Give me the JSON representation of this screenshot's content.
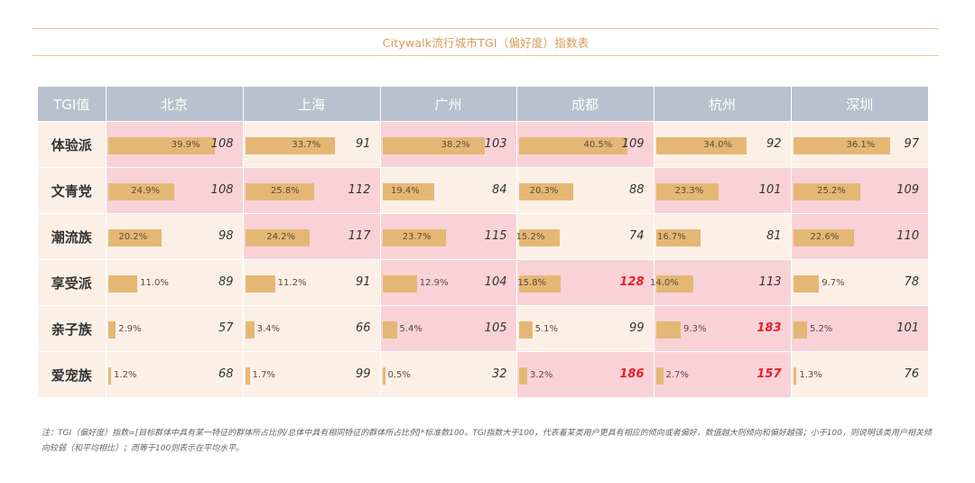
{
  "title": "Citywalk流行城市TGI（偏好度）指数表",
  "note": "注：TGI（偏好度）指数=[目标群体中具有某一特征的群体所占比例/总体中具有相同特征的群体所占比例]*标准数100。TGI指数大于100，代表着某类用户更具有相应的倾向或者偏好，数值越大则倾向和偏好越强；小于100，则说明该类用户相关倾向较弱（和平均相比）；而等于100则表示在平均水平。",
  "colors": {
    "header": "#b8c1cd",
    "cell_low": "#fcf0e6",
    "cell_high": "#f9d2d8",
    "bar": "#e5b775",
    "strong_text": "#e8202a"
  },
  "chart_data": {
    "type": "table",
    "title": "Citywalk流行城市TGI（偏好度）指数表",
    "corner_label": "TGI值",
    "columns": [
      "北京",
      "上海",
      "广州",
      "成都",
      "杭州",
      "深圳"
    ],
    "rows": [
      {
        "label": "体验派",
        "pct": [
          "39.9%",
          "33.7%",
          "38.2%",
          "40.5%",
          "34.0%",
          "36.1%"
        ],
        "pct_values": [
          39.9,
          33.7,
          38.2,
          40.5,
          34.0,
          36.1
        ],
        "tgi": [
          108,
          91,
          103,
          109,
          92,
          97
        ]
      },
      {
        "label": "文青党",
        "pct": [
          "24.9%",
          "25.8%",
          "19.4%",
          "20.3%",
          "23.3%",
          "25.2%"
        ],
        "pct_values": [
          24.9,
          25.8,
          19.4,
          20.3,
          23.3,
          25.2
        ],
        "tgi": [
          108,
          112,
          84,
          88,
          101,
          109
        ]
      },
      {
        "label": "潮流族",
        "pct": [
          "20.2%",
          "24.2%",
          "23.7%",
          "15.2%",
          "16.7%",
          "22.6%"
        ],
        "pct_values": [
          20.2,
          24.2,
          23.7,
          15.2,
          16.7,
          22.6
        ],
        "tgi": [
          98,
          117,
          115,
          74,
          81,
          110
        ]
      },
      {
        "label": "享受派",
        "pct": [
          "11.0%",
          "11.2%",
          "12.9%",
          "15.8%",
          "14.0%",
          "9.7%"
        ],
        "pct_values": [
          11.0,
          11.2,
          12.9,
          15.8,
          14.0,
          9.7
        ],
        "tgi": [
          89,
          91,
          104,
          128,
          113,
          78
        ]
      },
      {
        "label": "亲子族",
        "pct": [
          "2.9%",
          "3.4%",
          "5.4%",
          "5.1%",
          "9.3%",
          "5.2%"
        ],
        "pct_values": [
          2.9,
          3.4,
          5.4,
          5.1,
          9.3,
          5.2
        ],
        "tgi": [
          57,
          66,
          105,
          99,
          183,
          101
        ]
      },
      {
        "label": "爱宠族",
        "pct": [
          "1.2%",
          "1.7%",
          "0.5%",
          "3.2%",
          "2.7%",
          "1.3%"
        ],
        "pct_values": [
          1.2,
          1.7,
          0.5,
          3.2,
          2.7,
          1.3
        ],
        "tgi": [
          68,
          99,
          32,
          186,
          157,
          76
        ]
      }
    ],
    "highlight_threshold": 120
  }
}
